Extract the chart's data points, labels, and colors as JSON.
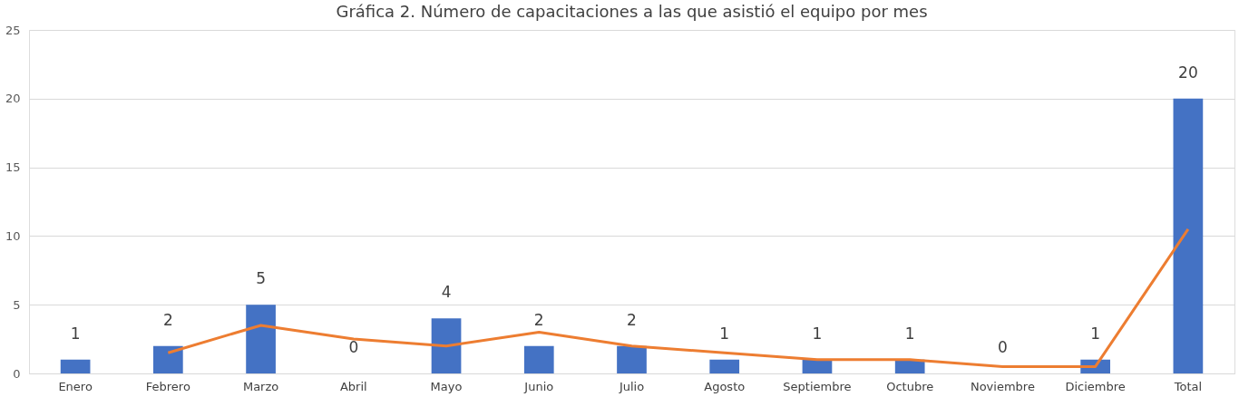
{
  "chart_data": {
    "type": "bar",
    "title": "Gráfica 2. Número de capacitaciones a las que asistió el equipo por mes",
    "categories": [
      "Enero",
      "Febrero",
      "Marzo",
      "Abril",
      "Mayo",
      "Junio",
      "Julio",
      "Agosto",
      "Septiembre",
      "Octubre",
      "Noviembre",
      "Diciembre",
      "Total"
    ],
    "series": [
      {
        "color": "#4472c4",
        "values": [
          1,
          2,
          5,
          0,
          4,
          2,
          2,
          1,
          1,
          1,
          0,
          1,
          20
        ],
        "data_labels": true
      },
      {
        "type": "line",
        "color": "#ed7d31",
        "values": [
          null,
          1.5,
          3.5,
          2.5,
          2,
          3,
          2,
          1.5,
          1,
          1,
          0.5,
          0.5,
          10.5
        ]
      }
    ],
    "ylim": [
      0,
      25
    ],
    "yticks": [
      0,
      5,
      10,
      15,
      20,
      25
    ],
    "grid": "y",
    "marker": "none",
    "line_style": "solid"
  }
}
